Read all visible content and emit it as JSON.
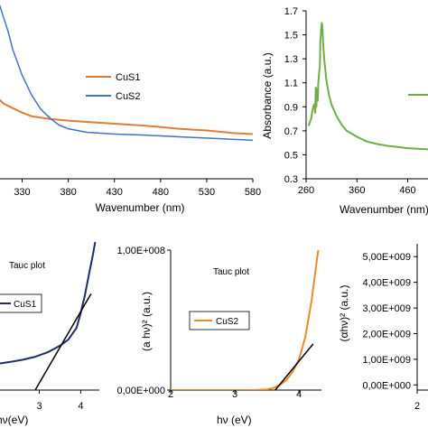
{
  "chart_data": [
    {
      "id": "p1",
      "type": "line",
      "xlabel": "Wavenumber (nm)",
      "xticks": [
        "330",
        "380",
        "430",
        "480",
        "530",
        "580"
      ],
      "xlim": [
        305,
        580
      ],
      "ylim": [
        0,
        1
      ],
      "legend_placement": "right",
      "series": [
        {
          "name": "CuS1",
          "color": "#E07B39",
          "x": [
            305,
            310,
            320,
            330,
            340,
            360,
            380,
            400,
            430,
            460,
            480,
            500,
            530,
            560,
            580
          ],
          "y": [
            0.445,
            0.42,
            0.395,
            0.37,
            0.35,
            0.335,
            0.325,
            0.318,
            0.308,
            0.298,
            0.29,
            0.28,
            0.27,
            0.255,
            0.25
          ]
        },
        {
          "name": "CuS2",
          "color": "#4472C4",
          "x": [
            305,
            310,
            315,
            320,
            330,
            340,
            350,
            360,
            370,
            380,
            400,
            430,
            460,
            500,
            540,
            580
          ],
          "y": [
            0.98,
            0.9,
            0.82,
            0.72,
            0.58,
            0.47,
            0.39,
            0.34,
            0.3,
            0.28,
            0.26,
            0.25,
            0.245,
            0.235,
            0.225,
            0.215
          ]
        }
      ]
    },
    {
      "id": "p2",
      "type": "line",
      "ylabel": "Absorbance (a.u.)",
      "xlabel": "Wavenumber (nm)",
      "xticks": [
        {
          "value": 260,
          "label": "260"
        },
        {
          "value": 360,
          "label": "360"
        },
        {
          "value": 460,
          "label": "460"
        }
      ],
      "yticks": [
        "0.3",
        "0.5",
        "0.7",
        "0.9",
        "1.1",
        "1.3",
        "1.5",
        "1.7"
      ],
      "xlim": [
        260,
        500
      ],
      "ylim": [
        0.3,
        1.7
      ],
      "legend_placement": "right",
      "series": [
        {
          "color": "#70AD47",
          "x": [
            265,
            268,
            270,
            272,
            274,
            276,
            278,
            279,
            280,
            281,
            282,
            283,
            284,
            285,
            286,
            287,
            288,
            289,
            290,
            291,
            292,
            294,
            296,
            300,
            305,
            310,
            320,
            330,
            340,
            360,
            380,
            400,
            420,
            440,
            460,
            480,
            500
          ],
          "y": [
            0.74,
            0.78,
            0.8,
            0.86,
            0.9,
            0.92,
            0.85,
            1.06,
            0.9,
            0.97,
            1.05,
            0.95,
            1.1,
            1.15,
            1.2,
            1.24,
            1.45,
            1.5,
            1.57,
            1.6,
            1.57,
            1.4,
            1.28,
            1.12,
            1.0,
            0.92,
            0.82,
            0.75,
            0.7,
            0.65,
            0.61,
            0.59,
            0.575,
            0.565,
            0.555,
            0.55,
            0.545
          ]
        }
      ]
    },
    {
      "id": "p3",
      "type": "line",
      "annotation": "Tauc plot",
      "xlabel": "hν(eV)",
      "xticks": [
        "3",
        "4"
      ],
      "xlim": [
        2.05,
        4.45
      ],
      "ylim": [
        0,
        1
      ],
      "legend_placement": "left",
      "series": [
        {
          "name": "CuS1",
          "color": "#1F2A6B",
          "x": [
            2.05,
            2.3,
            2.6,
            2.9,
            3.2,
            3.5,
            3.7,
            3.9,
            4.0,
            4.1,
            4.2,
            4.3,
            4.35
          ],
          "y": [
            0.18,
            0.19,
            0.205,
            0.225,
            0.255,
            0.3,
            0.34,
            0.42,
            0.52,
            0.64,
            0.78,
            0.92,
            1.0
          ]
        },
        {
          "name": "",
          "color": "#000000",
          "x": [
            2.9,
            4.25
          ],
          "y": [
            0.0,
            0.65
          ]
        }
      ]
    },
    {
      "id": "p4",
      "type": "line",
      "annotation": "Tauc plot",
      "ylabel": "(a hν)² (a.u.)",
      "xlabel": "hν (eV)",
      "xticks": [
        "2",
        "3",
        "4"
      ],
      "yticks": [
        "0,00E+000",
        "1,00E+008"
      ],
      "xlim": [
        2,
        4.35
      ],
      "ylim": [
        0,
        100000000
      ],
      "legend_placement": "left",
      "series": [
        {
          "name": "CuS2",
          "color": "#ED8B22",
          "x": [
            2.0,
            2.5,
            3.0,
            3.3,
            3.5,
            3.6,
            3.7,
            3.8,
            3.9,
            4.0,
            4.1,
            4.2,
            4.3
          ],
          "y": [
            0,
            0,
            0,
            0,
            500000,
            1500000,
            3500000,
            7000000,
            13000000,
            22000000,
            38000000,
            65000000,
            100000000
          ]
        },
        {
          "name": "",
          "color": "#000000",
          "x": [
            3.63,
            4.22
          ],
          "y": [
            0,
            33000000
          ]
        }
      ]
    },
    {
      "id": "p5",
      "type": "line",
      "ylabel": "(αhν)² (a.u.)",
      "xticks": [
        "2"
      ],
      "yticks": [
        "0,00E+000",
        "1,00E+009",
        "2,00E+009",
        "3,00E+009",
        "4,00E+009",
        "5,00E+009"
      ],
      "xlim": [
        2,
        2.6
      ],
      "ylim": [
        -200000000,
        5500000000
      ],
      "series": [
        {
          "color": "#2E9E48",
          "x": [
            2.0,
            2.05
          ],
          "y": [
            0,
            0
          ]
        }
      ]
    }
  ]
}
